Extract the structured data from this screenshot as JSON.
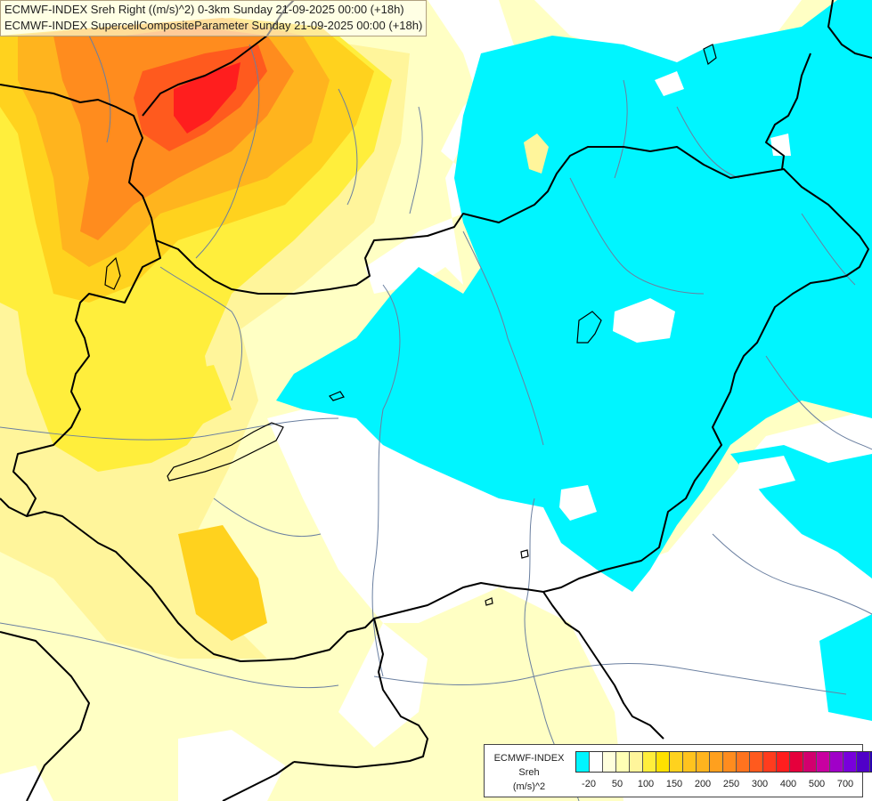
{
  "titles": {
    "line1": "ECMWF-INDEX Sreh Right ((m/s)^2) 0-3km Sunday 21-09-2025 00:00 (+18h)",
    "line2": "ECMWF-INDEX SupercellCompositeParameter Sunday 21-09-2025 00:00 (+18h)"
  },
  "colors": {
    "background": "#ffffff",
    "negative_cyan": "#00f5ff",
    "pale_yellow": "#ffffc4",
    "light_yellow": "#fff59b",
    "yellow": "#ffee3c",
    "gold": "#ffd21e",
    "orange": "#ffb41e",
    "dark_orange": "#ff8c1e",
    "red_orange": "#ff5a1e",
    "red": "#ff1e1e",
    "border": "#000000",
    "river": "#6a7fa0"
  },
  "legend": {
    "title": "ECMWF-INDEX",
    "variable": "Sreh",
    "unit": "(m/s)^2",
    "swatch_colors": [
      "#00f5ff",
      "#ffffff",
      "#ffffdc",
      "#ffffb4",
      "#fff59b",
      "#ffee3c",
      "#ffe100",
      "#ffd21e",
      "#ffc31e",
      "#ffb41e",
      "#ffa01e",
      "#ff8c1e",
      "#ff731e",
      "#ff5a1e",
      "#ff3c1e",
      "#ff1e1e",
      "#e6003c",
      "#d2006e",
      "#c800a0",
      "#a000c8",
      "#7800dc",
      "#5000c8",
      "#2800b4",
      "#0a0a78"
    ],
    "ticks": [
      "-20",
      "50",
      "100",
      "150",
      "200",
      "250",
      "300",
      "400",
      "500",
      "700"
    ]
  }
}
